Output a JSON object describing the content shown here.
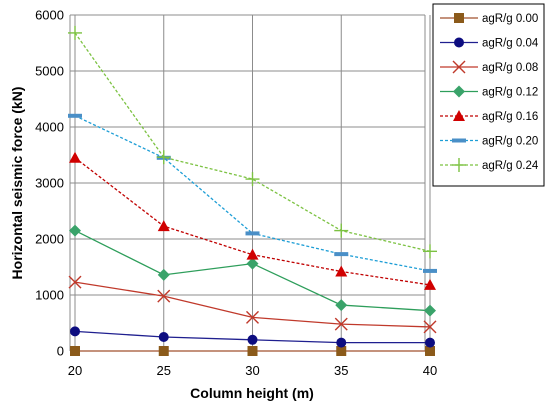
{
  "chart_data": {
    "type": "line",
    "title": "",
    "xlabel": "Column height (m)",
    "ylabel": "Horizontal seismic force (kN)",
    "x": [
      20,
      25,
      30,
      35,
      40
    ],
    "x_ticks": [
      "20",
      "25",
      "30",
      "35",
      "40"
    ],
    "y_ticks": [
      "0",
      "1000",
      "2000",
      "3000",
      "4000",
      "5000",
      "6000"
    ],
    "ylim": [
      0,
      6000
    ],
    "grid": true,
    "legend_position": "top-right",
    "series": [
      {
        "name": "agR/g 0.00",
        "values": [
          0,
          0,
          0,
          0,
          0
        ],
        "color": "#a0522d",
        "marker": "square",
        "dashed": false,
        "marker_color": "#8b5a1a"
      },
      {
        "name": "agR/g 0.04",
        "values": [
          350,
          250,
          200,
          150,
          150
        ],
        "color": "#1f1f8f",
        "marker": "circle",
        "dashed": false,
        "marker_color": "#0d0d80"
      },
      {
        "name": "agR/g 0.08",
        "values": [
          1230,
          980,
          600,
          480,
          430
        ],
        "color": "#c0392b",
        "marker": "x",
        "dashed": false,
        "marker_color": "#c0392b"
      },
      {
        "name": "agR/g 0.12",
        "values": [
          2150,
          1360,
          1560,
          820,
          720
        ],
        "color": "#2e9e5b",
        "marker": "diamond",
        "dashed": false,
        "marker_color": "#3aa36a"
      },
      {
        "name": "agR/g 0.16",
        "values": [
          3450,
          2230,
          1720,
          1420,
          1180
        ],
        "color": "#c00000",
        "marker": "triangle",
        "dashed": true,
        "marker_color": "#d00000"
      },
      {
        "name": "agR/g 0.20",
        "values": [
          4200,
          3450,
          2100,
          1730,
          1430
        ],
        "color": "#1e9ed6",
        "marker": "dash",
        "dashed": true,
        "marker_color": "#4a8fc7"
      },
      {
        "name": "agR/g 0.24",
        "values": [
          5680,
          3460,
          3070,
          2150,
          1780
        ],
        "color": "#7cc242",
        "marker": "plus",
        "dashed": true,
        "marker_color": "#7cc242"
      }
    ]
  }
}
